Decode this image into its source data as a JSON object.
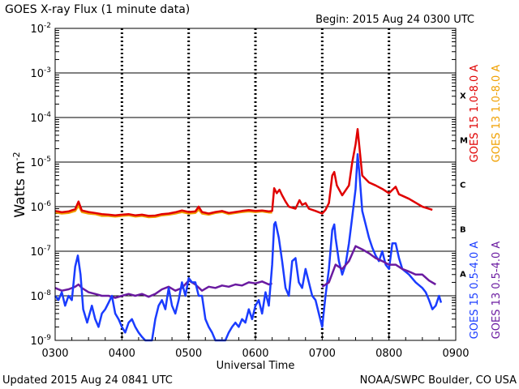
{
  "header": {
    "title": "GOES X-ray Flux (1 minute data)",
    "begin": "Begin: 2015 Aug 24 0300 UTC"
  },
  "footer": {
    "updated": "Updated 2015 Aug 24 0841 UTC",
    "credit": "NOAA/SWPC Boulder, CO USA"
  },
  "chart_data": {
    "type": "line",
    "xlabel": "Universal Time",
    "ylabel_base": "Watts m",
    "ylabel_exp": "-2",
    "xlim": [
      3.0,
      9.0
    ],
    "ylim": [
      1e-09,
      0.01
    ],
    "y_scale": "log",
    "x_ticks": [
      {
        "value": 3,
        "label": "0300"
      },
      {
        "value": 4,
        "label": "0400"
      },
      {
        "value": 5,
        "label": "0500"
      },
      {
        "value": 6,
        "label": "0600"
      },
      {
        "value": 7,
        "label": "0700"
      },
      {
        "value": 8,
        "label": "0800"
      },
      {
        "value": 9,
        "label": "0900"
      }
    ],
    "y_ticks": [
      {
        "exp": -9,
        "base": "10",
        "sup": "-9"
      },
      {
        "exp": -8,
        "base": "10",
        "sup": "-8"
      },
      {
        "exp": -7,
        "base": "10",
        "sup": "-7"
      },
      {
        "exp": -6,
        "base": "10",
        "sup": "-6"
      },
      {
        "exp": -5,
        "base": "10",
        "sup": "-5"
      },
      {
        "exp": -4,
        "base": "10",
        "sup": "-4"
      },
      {
        "exp": -3,
        "base": "10",
        "sup": "-3"
      },
      {
        "exp": -2,
        "base": "10",
        "sup": "-2"
      }
    ],
    "flare_classes": [
      {
        "label": "A",
        "exp": -7.5
      },
      {
        "label": "B",
        "exp": -6.5
      },
      {
        "label": "C",
        "exp": -5.5
      },
      {
        "label": "M",
        "exp": -4.5
      },
      {
        "label": "X",
        "exp": -3.5
      }
    ],
    "legend": [
      {
        "label": "GOES 15 1.0-8.0 A",
        "color": "#e00000"
      },
      {
        "label": "GOES 13 1.0-8.0 A",
        "color": "#f0a000"
      },
      {
        "label": "GOES 15 0.5-4.0 A",
        "color": "#1a3cff"
      },
      {
        "label": "GOES 13 0.5-4.0 A",
        "color": "#6a1aa0"
      }
    ],
    "series": [
      {
        "name": "GOES 13 1.0-8.0 A",
        "color": "#f0a000",
        "points": [
          [
            3.0,
            7.4e-07
          ],
          [
            3.1,
            7e-07
          ],
          [
            3.2,
            7.2e-07
          ],
          [
            3.3,
            8e-07
          ],
          [
            3.35,
            1.05e-06
          ],
          [
            3.4,
            7.6e-07
          ],
          [
            3.5,
            7e-07
          ],
          [
            3.6,
            6.8e-07
          ],
          [
            3.7,
            6.2e-07
          ],
          [
            3.8,
            6.2e-07
          ],
          [
            3.9,
            6e-07
          ],
          [
            4.0,
            6.2e-07
          ],
          [
            4.1,
            6.4e-07
          ],
          [
            4.2,
            6e-07
          ],
          [
            4.3,
            6.2e-07
          ],
          [
            4.4,
            5.8e-07
          ],
          [
            4.5,
            5.9e-07
          ],
          [
            4.6,
            6.4e-07
          ],
          [
            4.7,
            6.6e-07
          ],
          [
            4.8,
            7e-07
          ],
          [
            4.9,
            7.6e-07
          ],
          [
            5.0,
            7e-07
          ],
          [
            5.1,
            7.2e-07
          ],
          [
            5.15,
            8.6e-07
          ],
          [
            5.2,
            7e-07
          ],
          [
            5.3,
            6.6e-07
          ],
          [
            5.4,
            7.2e-07
          ],
          [
            5.5,
            7.6e-07
          ],
          [
            5.6,
            6.8e-07
          ],
          [
            5.7,
            7.2e-07
          ],
          [
            5.8,
            7.6e-07
          ],
          [
            5.9,
            7.8e-07
          ],
          [
            6.0,
            7.6e-07
          ],
          [
            6.1,
            7.8e-07
          ],
          [
            6.2,
            7.4e-07
          ],
          [
            6.25,
            7.4e-07
          ]
        ]
      },
      {
        "name": "GOES 15 1.0-8.0 A",
        "color": "#e00000",
        "points": [
          [
            3.0,
            8e-07
          ],
          [
            3.1,
            7.5e-07
          ],
          [
            3.2,
            7.8e-07
          ],
          [
            3.3,
            8.8e-07
          ],
          [
            3.35,
            1.3e-06
          ],
          [
            3.4,
            8.2e-07
          ],
          [
            3.5,
            7.6e-07
          ],
          [
            3.6,
            7.2e-07
          ],
          [
            3.7,
            6.8e-07
          ],
          [
            3.8,
            6.6e-07
          ],
          [
            3.9,
            6.4e-07
          ],
          [
            4.0,
            6.6e-07
          ],
          [
            4.1,
            6.8e-07
          ],
          [
            4.2,
            6.4e-07
          ],
          [
            4.3,
            6.6e-07
          ],
          [
            4.4,
            6.2e-07
          ],
          [
            4.5,
            6.3e-07
          ],
          [
            4.6,
            6.8e-07
          ],
          [
            4.7,
            7e-07
          ],
          [
            4.8,
            7.5e-07
          ],
          [
            4.9,
            8.2e-07
          ],
          [
            5.0,
            7.6e-07
          ],
          [
            5.1,
            7.8e-07
          ],
          [
            5.15,
            1e-06
          ],
          [
            5.2,
            7.6e-07
          ],
          [
            5.3,
            7e-07
          ],
          [
            5.4,
            7.6e-07
          ],
          [
            5.5,
            8e-07
          ],
          [
            5.6,
            7.2e-07
          ],
          [
            5.7,
            7.6e-07
          ],
          [
            5.8,
            8e-07
          ],
          [
            5.9,
            8.4e-07
          ],
          [
            6.0,
            8e-07
          ],
          [
            6.1,
            8.2e-07
          ],
          [
            6.2,
            7.8e-07
          ],
          [
            6.25,
            8e-07
          ],
          [
            6.28,
            2.6e-06
          ],
          [
            6.32,
            2e-06
          ],
          [
            6.36,
            2.4e-06
          ],
          [
            6.4,
            1.8e-06
          ],
          [
            6.45,
            1.3e-06
          ],
          [
            6.5,
            1e-06
          ],
          [
            6.6,
            9e-07
          ],
          [
            6.66,
            1.4e-06
          ],
          [
            6.7,
            1.1e-06
          ],
          [
            6.75,
            1.2e-06
          ],
          [
            6.8,
            9e-07
          ],
          [
            6.9,
            8e-07
          ],
          [
            7.0,
            7e-07
          ],
          [
            7.05,
            8.5e-07
          ],
          [
            7.1,
            1.2e-06
          ],
          [
            7.15,
            5e-06
          ],
          [
            7.18,
            6e-06
          ],
          [
            7.22,
            3e-06
          ],
          [
            7.3,
            1.8e-06
          ],
          [
            7.4,
            3e-06
          ],
          [
            7.45,
            1e-05
          ],
          [
            7.5,
            2.5e-05
          ],
          [
            7.53,
            5.5e-05
          ],
          [
            7.56,
            2e-05
          ],
          [
            7.6,
            5e-06
          ],
          [
            7.7,
            3.5e-06
          ],
          [
            7.8,
            3e-06
          ],
          [
            7.9,
            2.5e-06
          ],
          [
            8.0,
            2e-06
          ],
          [
            8.1,
            2.8e-06
          ],
          [
            8.15,
            1.9e-06
          ],
          [
            8.3,
            1.5e-06
          ],
          [
            8.5,
            1e-06
          ],
          [
            8.65,
            8.5e-07
          ]
        ]
      },
      {
        "name": "GOES 13 0.5-4.0 A",
        "color": "#6a1aa0",
        "points": [
          [
            3.0,
            1.5e-08
          ],
          [
            3.1,
            1.3e-08
          ],
          [
            3.2,
            1.4e-08
          ],
          [
            3.3,
            1.6e-08
          ],
          [
            3.35,
            1.8e-08
          ],
          [
            3.4,
            1.5e-08
          ],
          [
            3.5,
            1.2e-08
          ],
          [
            3.6,
            1.1e-08
          ],
          [
            3.7,
            1e-08
          ],
          [
            3.8,
            1e-08
          ],
          [
            3.9,
            9e-09
          ],
          [
            4.0,
            1e-08
          ],
          [
            4.1,
            1.1e-08
          ],
          [
            4.2,
            1e-08
          ],
          [
            4.3,
            1.1e-08
          ],
          [
            4.4,
            9.5e-09
          ],
          [
            4.5,
            1.1e-08
          ],
          [
            4.6,
            1.4e-08
          ],
          [
            4.7,
            1.6e-08
          ],
          [
            4.8,
            1.3e-08
          ],
          [
            4.9,
            1.5e-08
          ],
          [
            5.0,
            2.2e-08
          ],
          [
            5.1,
            1.8e-08
          ],
          [
            5.2,
            1.3e-08
          ],
          [
            5.3,
            1.6e-08
          ],
          [
            5.4,
            1.5e-08
          ],
          [
            5.5,
            1.7e-08
          ],
          [
            5.6,
            1.6e-08
          ],
          [
            5.7,
            1.8e-08
          ],
          [
            5.8,
            1.7e-08
          ],
          [
            5.9,
            2e-08
          ],
          [
            6.0,
            1.9e-08
          ],
          [
            6.1,
            2.1e-08
          ],
          [
            6.2,
            1.8e-08
          ],
          [
            6.25,
            1.9e-08
          ]
        ]
      },
      {
        "name": "GOES 15 0.5-4.0 A",
        "color": "#1a3cff",
        "points": [
          [
            3.0,
            1e-08
          ],
          [
            3.05,
            8e-09
          ],
          [
            3.1,
            1.2e-08
          ],
          [
            3.15,
            6e-09
          ],
          [
            3.2,
            1e-08
          ],
          [
            3.25,
            8e-09
          ],
          [
            3.3,
            4.5e-08
          ],
          [
            3.34,
            8e-08
          ],
          [
            3.38,
            3e-08
          ],
          [
            3.42,
            5e-09
          ],
          [
            3.48,
            2.5e-09
          ],
          [
            3.55,
            6e-09
          ],
          [
            3.6,
            3e-09
          ],
          [
            3.65,
            2e-09
          ],
          [
            3.7,
            4e-09
          ],
          [
            3.75,
            5e-09
          ],
          [
            3.8,
            7e-09
          ],
          [
            3.85,
            1e-08
          ],
          [
            3.9,
            4e-09
          ],
          [
            3.95,
            3e-09
          ],
          [
            4.0,
            2e-09
          ],
          [
            4.05,
            1.5e-09
          ],
          [
            4.1,
            2.5e-09
          ],
          [
            4.15,
            3e-09
          ],
          [
            4.2,
            2e-09
          ],
          [
            4.25,
            1.5e-09
          ],
          [
            4.3,
            1.2e-09
          ],
          [
            4.35,
            1e-09
          ],
          [
            4.4,
            1e-09
          ],
          [
            4.45,
            1e-09
          ],
          [
            4.5,
            3e-09
          ],
          [
            4.55,
            6e-09
          ],
          [
            4.6,
            8e-09
          ],
          [
            4.65,
            5e-09
          ],
          [
            4.7,
            1.5e-08
          ],
          [
            4.75,
            6e-09
          ],
          [
            4.8,
            4e-09
          ],
          [
            4.85,
            8e-09
          ],
          [
            4.9,
            2e-08
          ],
          [
            4.95,
            1e-08
          ],
          [
            5.0,
            2.5e-08
          ],
          [
            5.05,
            2e-08
          ],
          [
            5.1,
            2e-08
          ],
          [
            5.15,
            1e-08
          ],
          [
            5.2,
            1e-08
          ],
          [
            5.25,
            3e-09
          ],
          [
            5.3,
            2e-09
          ],
          [
            5.35,
            1.5e-09
          ],
          [
            5.4,
            1e-09
          ],
          [
            5.45,
            1e-09
          ],
          [
            5.5,
            1e-09
          ],
          [
            5.55,
            1e-09
          ],
          [
            5.6,
            1.5e-09
          ],
          [
            5.65,
            2e-09
          ],
          [
            5.7,
            2.5e-09
          ],
          [
            5.75,
            2e-09
          ],
          [
            5.8,
            3e-09
          ],
          [
            5.85,
            2.5e-09
          ],
          [
            5.9,
            5e-09
          ],
          [
            5.95,
            3e-09
          ],
          [
            6.0,
            6e-09
          ],
          [
            6.05,
            8e-09
          ],
          [
            6.1,
            4e-09
          ],
          [
            6.15,
            1.2e-08
          ],
          [
            6.2,
            6e-09
          ],
          [
            6.25,
            5e-08
          ],
          [
            6.28,
            4e-07
          ],
          [
            6.3,
            4.5e-07
          ],
          [
            6.35,
            2e-07
          ],
          [
            6.4,
            6e-08
          ],
          [
            6.45,
            1.5e-08
          ],
          [
            6.5,
            1e-08
          ],
          [
            6.55,
            6e-08
          ],
          [
            6.6,
            7e-08
          ],
          [
            6.65,
            2e-08
          ],
          [
            6.7,
            1.5e-08
          ],
          [
            6.75,
            4e-08
          ],
          [
            6.8,
            2e-08
          ],
          [
            6.85,
            1e-08
          ],
          [
            6.9,
            8e-09
          ],
          [
            6.95,
            4e-09
          ],
          [
            7.0,
            2e-09
          ],
          [
            7.05,
            1e-08
          ],
          [
            7.1,
            4e-08
          ],
          [
            7.15,
            3e-07
          ],
          [
            7.18,
            4e-07
          ],
          [
            7.2,
            2e-07
          ],
          [
            7.25,
            6e-08
          ],
          [
            7.3,
            3e-08
          ],
          [
            7.35,
            5e-08
          ],
          [
            7.4,
            1.5e-07
          ],
          [
            7.45,
            6e-07
          ],
          [
            7.5,
            2.5e-06
          ],
          [
            7.53,
            1.5e-05
          ],
          [
            7.56,
            5e-06
          ],
          [
            7.6,
            8e-07
          ],
          [
            7.65,
            4e-07
          ],
          [
            7.7,
            2e-07
          ],
          [
            7.75,
            1.2e-07
          ],
          [
            7.8,
            8e-08
          ],
          [
            7.85,
            6e-08
          ],
          [
            7.9,
            1e-07
          ],
          [
            7.95,
            5e-08
          ],
          [
            8.0,
            4e-08
          ],
          [
            8.05,
            1.5e-07
          ],
          [
            8.1,
            1.5e-07
          ],
          [
            8.15,
            7e-08
          ],
          [
            8.2,
            4e-08
          ],
          [
            8.3,
            3e-08
          ],
          [
            8.4,
            2e-08
          ],
          [
            8.5,
            1.5e-08
          ],
          [
            8.55,
            1.2e-08
          ],
          [
            8.6,
            8e-09
          ],
          [
            8.65,
            5e-09
          ],
          [
            8.7,
            6e-09
          ],
          [
            8.75,
            1e-08
          ],
          [
            8.78,
            7e-09
          ]
        ]
      },
      {
        "name": "GOES 13 0.5-4.0 A (late)",
        "color": "#6a1aa0",
        "points": [
          [
            7.0,
            1.6e-08
          ],
          [
            7.1,
            2e-08
          ],
          [
            7.2,
            5e-08
          ],
          [
            7.3,
            4e-08
          ],
          [
            7.4,
            6e-08
          ],
          [
            7.5,
            1.3e-07
          ],
          [
            7.6,
            1.1e-07
          ],
          [
            7.7,
            9e-08
          ],
          [
            7.8,
            7e-08
          ],
          [
            7.9,
            6e-08
          ],
          [
            8.0,
            5e-08
          ],
          [
            8.1,
            5e-08
          ],
          [
            8.2,
            4e-08
          ],
          [
            8.3,
            3.5e-08
          ],
          [
            8.4,
            3e-08
          ],
          [
            8.5,
            3e-08
          ],
          [
            8.6,
            2.2e-08
          ],
          [
            8.7,
            1.8e-08
          ]
        ]
      }
    ]
  }
}
